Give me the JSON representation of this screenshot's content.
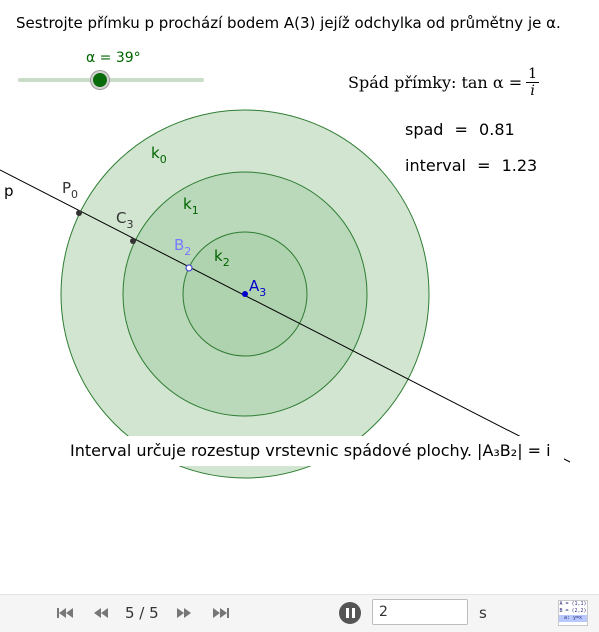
{
  "task": "Sestrojte přímku p prochází bodem A(3) jejíž odchylka od průmětny je α.",
  "slider": {
    "label": "α = 39°",
    "value_deg": 39
  },
  "formula": {
    "text": "Spád přímky: tan α =",
    "numerator": "1",
    "denominator": "i"
  },
  "values": {
    "spad": {
      "label": "spad",
      "eq": "=",
      "value": "0.81"
    },
    "interval": {
      "label": "interval",
      "eq": "=",
      "value": "1.23"
    }
  },
  "labels": {
    "k0": "k",
    "k0_sub": "0",
    "k1": "k",
    "k1_sub": "1",
    "k2": "k",
    "k2_sub": "2",
    "p": "p",
    "P0": "P",
    "P0_sub": "0",
    "C3": "C",
    "C3_sub": "3",
    "B2": "B",
    "B2_sub": "2",
    "A3": "A",
    "A3_sub": "3"
  },
  "note": "Interval určuje rozestup vrstevnic spádové plochy. |A₃B₂| = i",
  "colors": {
    "circle_fill": "#a3cca3",
    "circle_stroke": "#2e7d32",
    "label_green": "#006400",
    "point_blue": "#0000cc",
    "point_lightblue": "#7a7aff"
  },
  "toolbar": {
    "page": "5 / 5",
    "speed": "2",
    "unit": "s",
    "icons": [
      "first-icon",
      "prev-icon",
      "next-icon",
      "last-icon",
      "pause-icon",
      "algebra-icon"
    ],
    "algebra_icon_text": [
      "A = (1,1)",
      "B = (2,2)",
      "a: y=x"
    ]
  }
}
